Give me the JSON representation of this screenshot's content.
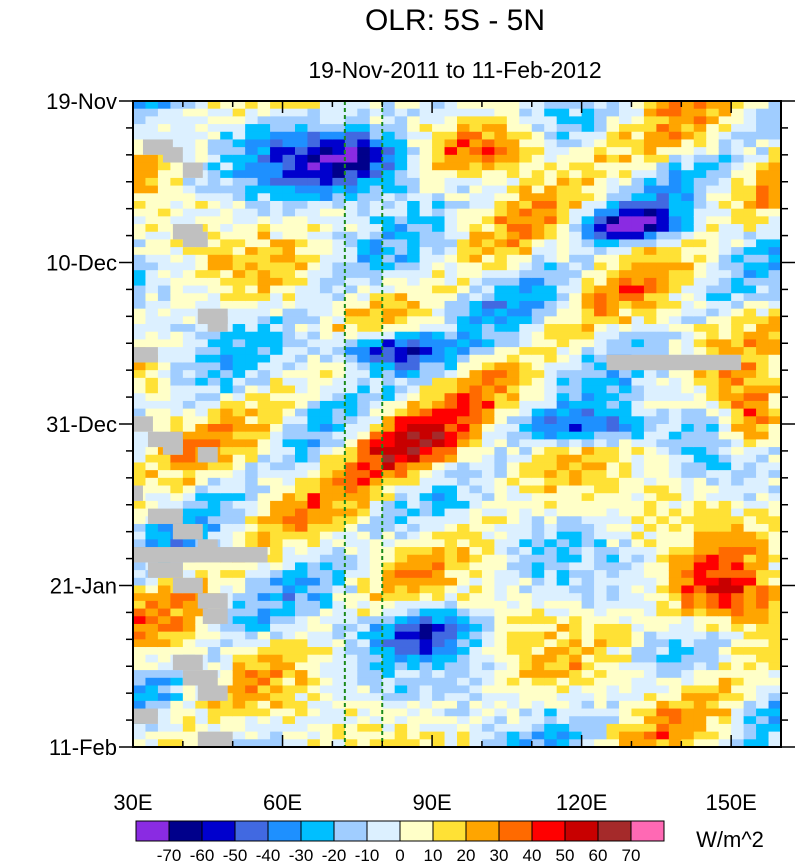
{
  "chart_data": {
    "type": "heatmap",
    "title": "OLR: 5S - 5N",
    "subtitle": "19-Nov-2011 to 11-Feb-2012",
    "xlabel": "",
    "ylabel": "",
    "x_range": [
      30,
      160
    ],
    "x_ticks": [
      {
        "value": 30,
        "label": "30E"
      },
      {
        "value": 60,
        "label": "60E"
      },
      {
        "value": 90,
        "label": "90E"
      },
      {
        "value": 120,
        "label": "120E"
      },
      {
        "value": 150,
        "label": "150E"
      }
    ],
    "y_range_days": [
      0,
      84
    ],
    "y_ticks": [
      {
        "value": 0,
        "label": "19-Nov"
      },
      {
        "value": 21,
        "label": "10-Dec"
      },
      {
        "value": 42,
        "label": "31-Dec"
      },
      {
        "value": 63,
        "label": "21-Jan"
      },
      {
        "value": 84,
        "label": "11-Feb"
      }
    ],
    "reference_lines_lon": [
      72.5,
      80
    ],
    "colorbar": {
      "unit": "W/m^2",
      "levels": [
        -70,
        -60,
        -50,
        -40,
        -30,
        -20,
        -10,
        0,
        10,
        20,
        30,
        40,
        50,
        60,
        70
      ],
      "labels": [
        "-70",
        "-60",
        "-50",
        "-40",
        "-30",
        "-20",
        "-10",
        "0",
        "10",
        "20",
        "30",
        "40",
        "50",
        "60",
        "70"
      ],
      "colors": [
        "#8a2be2",
        "#00008b",
        "#0000cd",
        "#4169e1",
        "#1e90ff",
        "#00bfff",
        "#a0cdff",
        "#dcf0ff",
        "#ffffc8",
        "#ffe135",
        "#ffa500",
        "#ff6a00",
        "#ff0000",
        "#c80000",
        "#a52a2a",
        "#ff69b4"
      ]
    },
    "missing_color": "#c0c0c0",
    "grid_resolution": {
      "lon_step": 2.5,
      "day_step": 1
    },
    "anomaly_features": [
      {
        "kind": "negative",
        "lon": [
          58,
          92
        ],
        "day": [
          3,
          12
        ],
        "peak": -70
      },
      {
        "kind": "negative",
        "lon": [
          68,
          92
        ],
        "day": [
          30,
          35
        ],
        "peak": -70
      },
      {
        "kind": "negative",
        "lon": [
          118,
          140
        ],
        "day": [
          14,
          18
        ],
        "peak": -60
      },
      {
        "kind": "negative",
        "lon": [
          108,
          135
        ],
        "day": [
          40,
          45
        ],
        "peak": -50
      },
      {
        "kind": "negative",
        "lon": [
          78,
          100
        ],
        "day": [
          66,
          72
        ],
        "peak": -50
      },
      {
        "kind": "positive",
        "lon": [
          72,
          100
        ],
        "day": [
          40,
          50
        ],
        "peak": 50
      },
      {
        "kind": "positive",
        "lon": [
          138,
          160
        ],
        "day": [
          60,
          70
        ],
        "peak": 50
      },
      {
        "kind": "positive",
        "lon": [
          148,
          160
        ],
        "day": [
          36,
          46
        ],
        "peak": 40
      },
      {
        "kind": "positive",
        "lon": [
          85,
          120
        ],
        "day": [
          3,
          10
        ],
        "peak": 40
      }
    ]
  }
}
